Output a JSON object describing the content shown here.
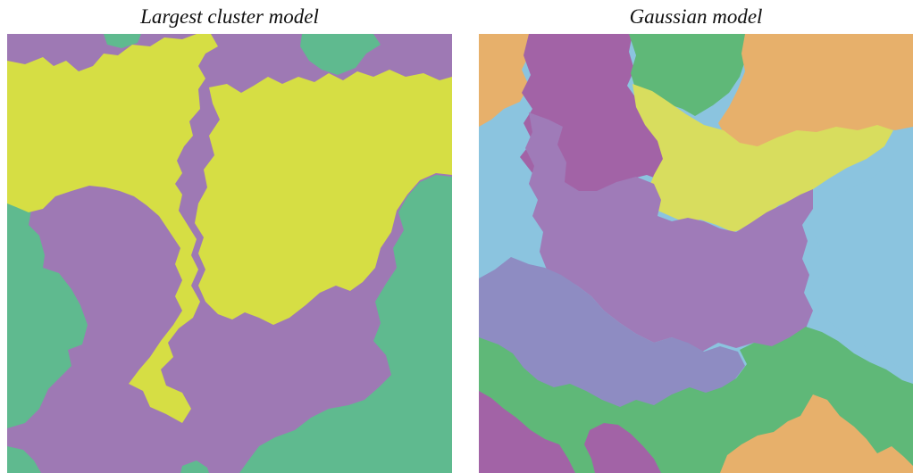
{
  "panels": [
    {
      "title": "Largest cluster model",
      "cluster_colors": [
        "#9e79b4",
        "#d6de44",
        "#5fba8f"
      ]
    },
    {
      "title": "Gaussian model",
      "cluster_colors": [
        "#a263a6",
        "#e7b06b",
        "#8bc4df",
        "#5fb878",
        "#d8dd5e",
        "#9f7bb8",
        "#8e8cc2"
      ]
    }
  ]
}
